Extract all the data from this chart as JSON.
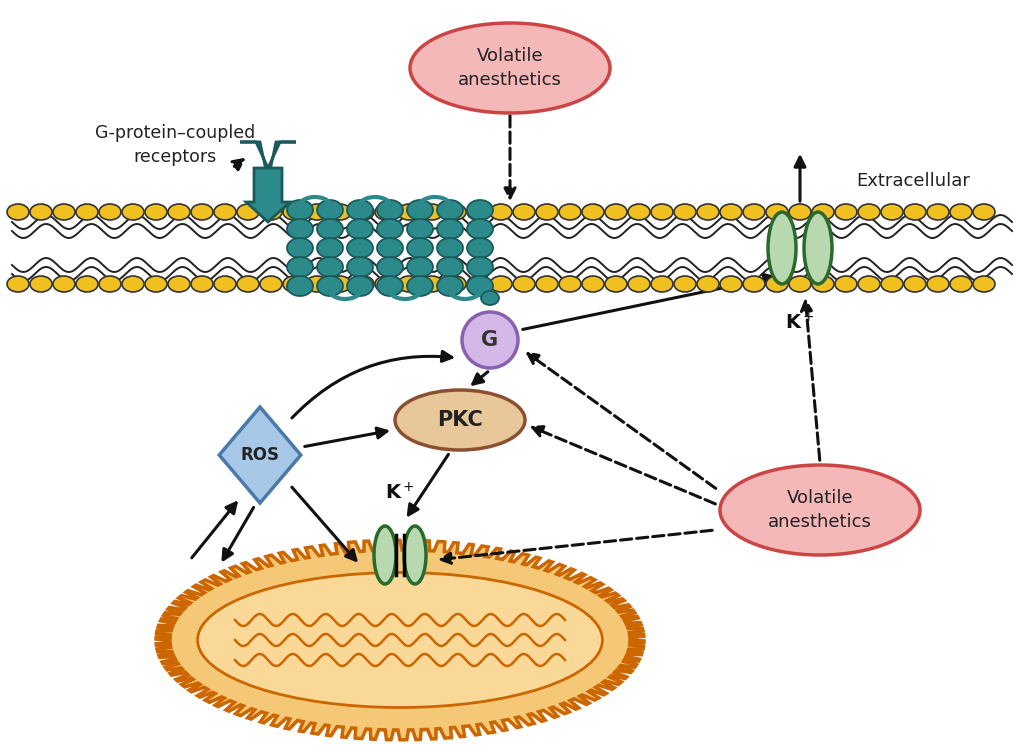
{
  "bg_color": "#ffffff",
  "lipid_head_color": "#f0c020",
  "receptor_color": "#2d8a8a",
  "receptor_label": "G-protein–coupled\nreceptors",
  "g_protein_color": "#d4b8e8",
  "g_protein_label": "G",
  "pkc_color": "#e8c89a",
  "pkc_label": "PKC",
  "ros_color": "#a8c8e8",
  "ros_label": "ROS",
  "volatile_color": "#f4b8b8",
  "volatile_label": "Volatile\nanesthetics",
  "channel_color": "#b8d8b0",
  "mito_fill_color": "#f5c878",
  "mito_inner_color": "#fad898",
  "mito_outline_color": "#e08020",
  "extracellular_label": "Extracellular",
  "arrow_color": "#111111"
}
